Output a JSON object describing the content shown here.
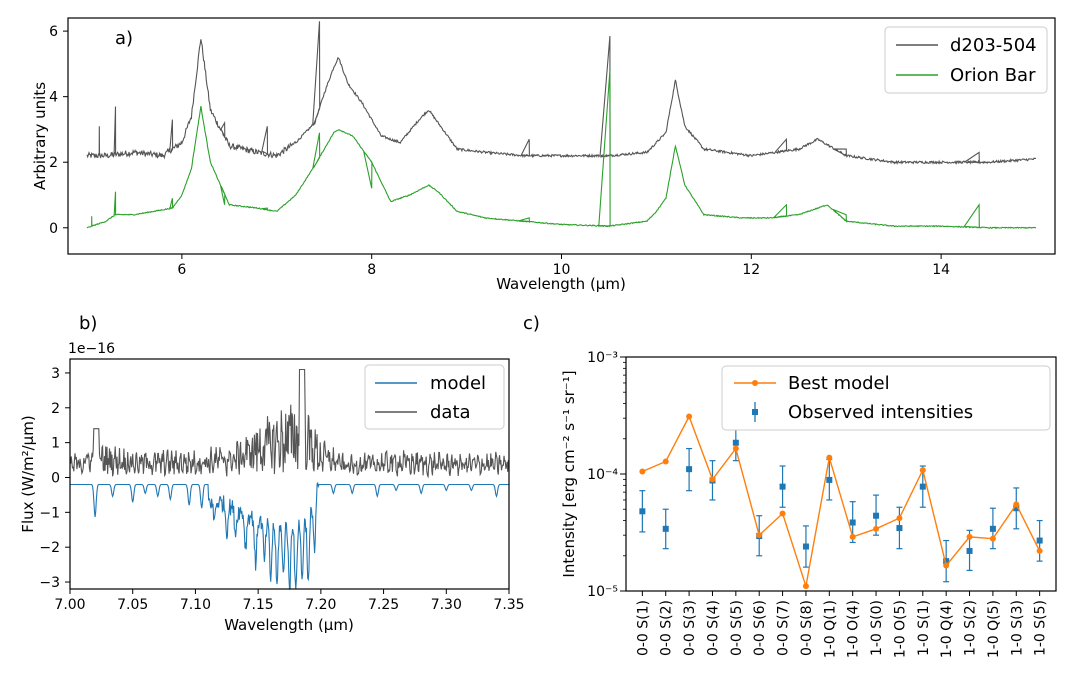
{
  "chart_data": [
    {
      "panel": "a)",
      "type": "line",
      "xlabel": "Wavelength (μm)",
      "ylabel": "Arbitrary units",
      "xlim": [
        4.8,
        15.2
      ],
      "ylim": [
        -0.8,
        6.4
      ],
      "xticks": [
        6,
        8,
        10,
        12,
        14
      ],
      "yticks": [
        0,
        2,
        4,
        6
      ],
      "legend_position": "top-right",
      "series": [
        {
          "name": "d203-504",
          "color": "#555555",
          "baseline": 2.15,
          "x": [
            5.0,
            5.2,
            5.5,
            5.8,
            6.0,
            6.1,
            6.2,
            6.3,
            6.5,
            6.8,
            7.0,
            7.2,
            7.4,
            7.5,
            7.6,
            7.65,
            7.75,
            7.9,
            8.1,
            8.3,
            8.5,
            8.6,
            8.7,
            8.9,
            9.2,
            9.6,
            10.0,
            10.5,
            10.9,
            11.0,
            11.1,
            11.2,
            11.3,
            11.5,
            12.0,
            12.5,
            12.7,
            13.0,
            13.5,
            14.0,
            14.5,
            15.0
          ],
          "y": [
            2.2,
            2.2,
            2.3,
            2.2,
            2.6,
            3.4,
            5.8,
            3.6,
            2.5,
            2.3,
            2.2,
            2.6,
            3.2,
            4.1,
            4.9,
            5.2,
            4.4,
            3.8,
            2.8,
            2.6,
            3.3,
            3.6,
            3.2,
            2.4,
            2.3,
            2.2,
            2.2,
            2.2,
            2.3,
            2.6,
            2.9,
            4.5,
            3.1,
            2.4,
            2.2,
            2.4,
            2.7,
            2.2,
            2.0,
            2.0,
            2.0,
            2.1
          ],
          "spikes": [
            [
              5.13,
              3.1
            ],
            [
              5.3,
              3.7
            ],
            [
              5.9,
              3.3
            ],
            [
              6.45,
              3.2
            ],
            [
              6.9,
              3.1
            ],
            [
              7.45,
              6.3
            ],
            [
              9.66,
              2.7
            ],
            [
              10.51,
              5.85
            ],
            [
              12.37,
              2.7
            ],
            [
              13.0,
              2.4
            ],
            [
              14.4,
              2.3
            ]
          ]
        },
        {
          "name": "Orion Bar",
          "color": "#2ca02c",
          "baseline": 0.0,
          "x": [
            5.0,
            5.2,
            5.3,
            5.5,
            5.7,
            5.9,
            6.0,
            6.1,
            6.2,
            6.3,
            6.5,
            6.8,
            7.0,
            7.2,
            7.4,
            7.5,
            7.6,
            7.65,
            7.8,
            8.0,
            8.2,
            8.4,
            8.6,
            8.7,
            8.9,
            9.2,
            9.6,
            10.0,
            10.5,
            10.9,
            11.0,
            11.1,
            11.2,
            11.3,
            11.5,
            11.9,
            12.2,
            12.5,
            12.7,
            12.8,
            13.0,
            13.5,
            14.0,
            14.5,
            15.0
          ],
          "y": [
            0.0,
            0.2,
            0.4,
            0.4,
            0.5,
            0.6,
            1.0,
            1.8,
            3.7,
            2.0,
            0.7,
            0.6,
            0.5,
            1.0,
            1.9,
            2.4,
            2.9,
            3.0,
            2.8,
            2.0,
            0.8,
            1.0,
            1.3,
            1.1,
            0.5,
            0.3,
            0.2,
            0.1,
            0.05,
            0.2,
            0.5,
            0.9,
            2.5,
            1.3,
            0.4,
            0.3,
            0.3,
            0.4,
            0.6,
            0.7,
            0.2,
            0.05,
            0.05,
            0.0,
            0.0
          ],
          "spikes": [
            [
              5.05,
              0.35
            ],
            [
              5.3,
              1.1
            ],
            [
              5.9,
              0.9
            ],
            [
              6.45,
              0.7
            ],
            [
              6.9,
              0.6
            ],
            [
              7.45,
              2.9
            ],
            [
              8.0,
              1.2
            ],
            [
              9.66,
              0.3
            ],
            [
              10.51,
              4.8
            ],
            [
              12.37,
              0.7
            ],
            [
              13.0,
              0.4
            ],
            [
              14.4,
              0.7
            ]
          ]
        }
      ]
    },
    {
      "panel": "b)",
      "type": "line",
      "xlabel": "Wavelength (μm)",
      "ylabel": "Flux (W/m²/μm)",
      "offset_label": "1e−16",
      "xlim": [
        7.0,
        7.35
      ],
      "ylim": [
        -3.2,
        3.4
      ],
      "xticks": [
        "7.00",
        "7.05",
        "7.10",
        "7.15",
        "7.20",
        "7.25",
        "7.30",
        "7.35"
      ],
      "yticks": [
        -3,
        -2,
        -1,
        0,
        1,
        2,
        3
      ],
      "legend_position": "top-right",
      "series": [
        {
          "name": "model",
          "color": "#1f77b4",
          "baseline": -0.2,
          "lines": [
            7.02,
            7.034,
            7.05,
            7.06,
            7.07,
            7.08,
            7.095,
            7.105,
            7.115,
            7.125,
            7.132,
            7.14,
            7.148,
            7.155,
            7.16,
            7.165,
            7.17,
            7.175,
            7.18,
            7.185,
            7.19,
            7.195,
            7.21,
            7.225,
            7.245,
            7.26,
            7.28,
            7.3,
            7.32,
            7.34
          ],
          "depths": [
            -1.3,
            -0.6,
            -0.8,
            -0.5,
            -0.6,
            -0.7,
            -0.9,
            -1.0,
            -0.8,
            -1.1,
            -1.0,
            -1.3,
            -1.8,
            -1.5,
            -2.0,
            -2.3,
            -1.9,
            -2.6,
            -2.8,
            -2.2,
            -2.4,
            -2.0,
            -0.5,
            -0.5,
            -0.6,
            -0.4,
            -0.5,
            -0.4,
            -0.4,
            -0.6
          ],
          "band": [
            [
              7.12,
              -0.7
            ],
            [
              7.16,
              -1.4
            ],
            [
              7.19,
              -1.2
            ],
            [
              7.198,
              -0.2
            ]
          ]
        },
        {
          "name": "data",
          "color": "#555555",
          "envelope_x": [
            7.0,
            7.02,
            7.05,
            7.1,
            7.13,
            7.15,
            7.17,
            7.185,
            7.2,
            7.22,
            7.26,
            7.3,
            7.35
          ],
          "envelope_y": [
            0.4,
            0.9,
            0.6,
            0.6,
            0.8,
            1.5,
            2.0,
            2.4,
            1.0,
            0.4,
            0.6,
            0.5,
            0.5
          ]
        }
      ]
    },
    {
      "panel": "c)",
      "type": "scatter",
      "ylabel": "Intensity [erg cm⁻² s⁻¹ sr⁻¹]",
      "yscale": "log",
      "ylim": [
        1e-05,
        0.001
      ],
      "ytick_labels": [
        "10⁻⁵",
        "10⁻⁴",
        "10⁻³"
      ],
      "legend_position": "top-right",
      "categories": [
        "0-0 S(1)",
        "0-0 S(2)",
        "0-0 S(3)",
        "0-0 S(4)",
        "0-0 S(5)",
        "0-0 S(6)",
        "0-0 S(7)",
        "0-0 S(8)",
        "1-0 Q(1)",
        "1-0 O(4)",
        "1-0 S(0)",
        "1-0 O(5)",
        "1-0 S(1)",
        "1-0 Q(4)",
        "1-0 S(2)",
        "1-0 Q(5)",
        "1-0 S(3)",
        "1-0 S(5)"
      ],
      "series": [
        {
          "name": "Best model",
          "color": "#ff7f0e",
          "values": [
            0.000105,
            0.000128,
            0.00031,
            9e-05,
            0.000165,
            3e-05,
            4.6e-05,
            1.1e-05,
            0.000138,
            2.9e-05,
            3.4e-05,
            4.2e-05,
            0.000108,
            1.65e-05,
            2.9e-05,
            2.8e-05,
            5.5e-05,
            2.2e-05
          ]
        },
        {
          "name": "Observed intensities",
          "color": "#1f77b4",
          "values": [
            4.8e-05,
            3.4e-05,
            0.00011,
            8.8e-05,
            0.000185,
            2.95e-05,
            7.8e-05,
            2.4e-05,
            8.9e-05,
            3.85e-05,
            4.4e-05,
            3.45e-05,
            7.8e-05,
            1.8e-05,
            2.2e-05,
            3.4e-05,
            5.1e-05,
            2.7e-05
          ],
          "err_low": [
            3.2e-05,
            2.3e-05,
            7.2e-05,
            6e-05,
            0.00013,
            2e-05,
            5.2e-05,
            1.6e-05,
            6e-05,
            2.6e-05,
            3e-05,
            2.3e-05,
            5.2e-05,
            1.2e-05,
            1.5e-05,
            2.3e-05,
            3.4e-05,
            1.8e-05
          ],
          "err_high": [
            7.2e-05,
            5e-05,
            0.000165,
            0.00013,
            0.00028,
            4.4e-05,
            0.000117,
            3.6e-05,
            0.000133,
            5.8e-05,
            6.6e-05,
            5.2e-05,
            0.000117,
            2.7e-05,
            3.3e-05,
            5.1e-05,
            7.6e-05,
            4e-05
          ]
        }
      ]
    }
  ]
}
